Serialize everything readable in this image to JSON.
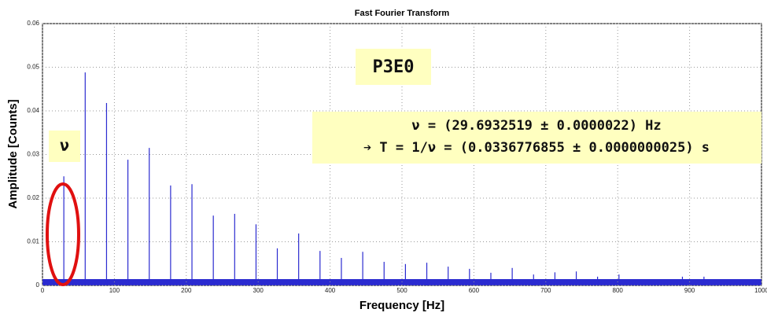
{
  "chart_data": {
    "type": "stem",
    "title": "Fast Fourier Transform",
    "x_label": "Frequency [Hz]",
    "y_label": "Amplitude [Counts]",
    "x": [
      29.7,
      59.4,
      89.1,
      118.8,
      148.5,
      178.2,
      207.9,
      237.6,
      267.3,
      297,
      326.6,
      356.3,
      386,
      415.7,
      445.4,
      475.1,
      504.8,
      534.5,
      564.2,
      593.9,
      623.6,
      653.3,
      683,
      712.7,
      742.4,
      772,
      801.8,
      890,
      920
    ],
    "values": [
      0.025,
      0.0488,
      0.0418,
      0.0288,
      0.0315,
      0.0229,
      0.0232,
      0.016,
      0.0164,
      0.014,
      0.0085,
      0.0119,
      0.0079,
      0.0063,
      0.0077,
      0.0054,
      0.0049,
      0.0052,
      0.0043,
      0.0038,
      0.0029,
      0.004,
      0.0025,
      0.003,
      0.0032,
      0.002,
      0.0025,
      0.002,
      0.002
    ],
    "color": "#2b2bd0",
    "xlim": [
      0,
      1000
    ],
    "xticks": [
      0,
      100,
      200,
      300,
      400,
      500,
      600,
      700,
      800,
      900,
      1000
    ],
    "ylim": [
      0,
      0.06
    ],
    "yticks": [
      0,
      0.01,
      0.02,
      0.03,
      0.04,
      0.05,
      0.06
    ],
    "grid": true,
    "annotations": [
      "P3E0",
      "ν",
      "ν = (29.6932519 ± 0.0000022) Hz",
      "➔ T = 1/ν = (0.0336776855 ± 0.0000000025) s"
    ]
  }
}
